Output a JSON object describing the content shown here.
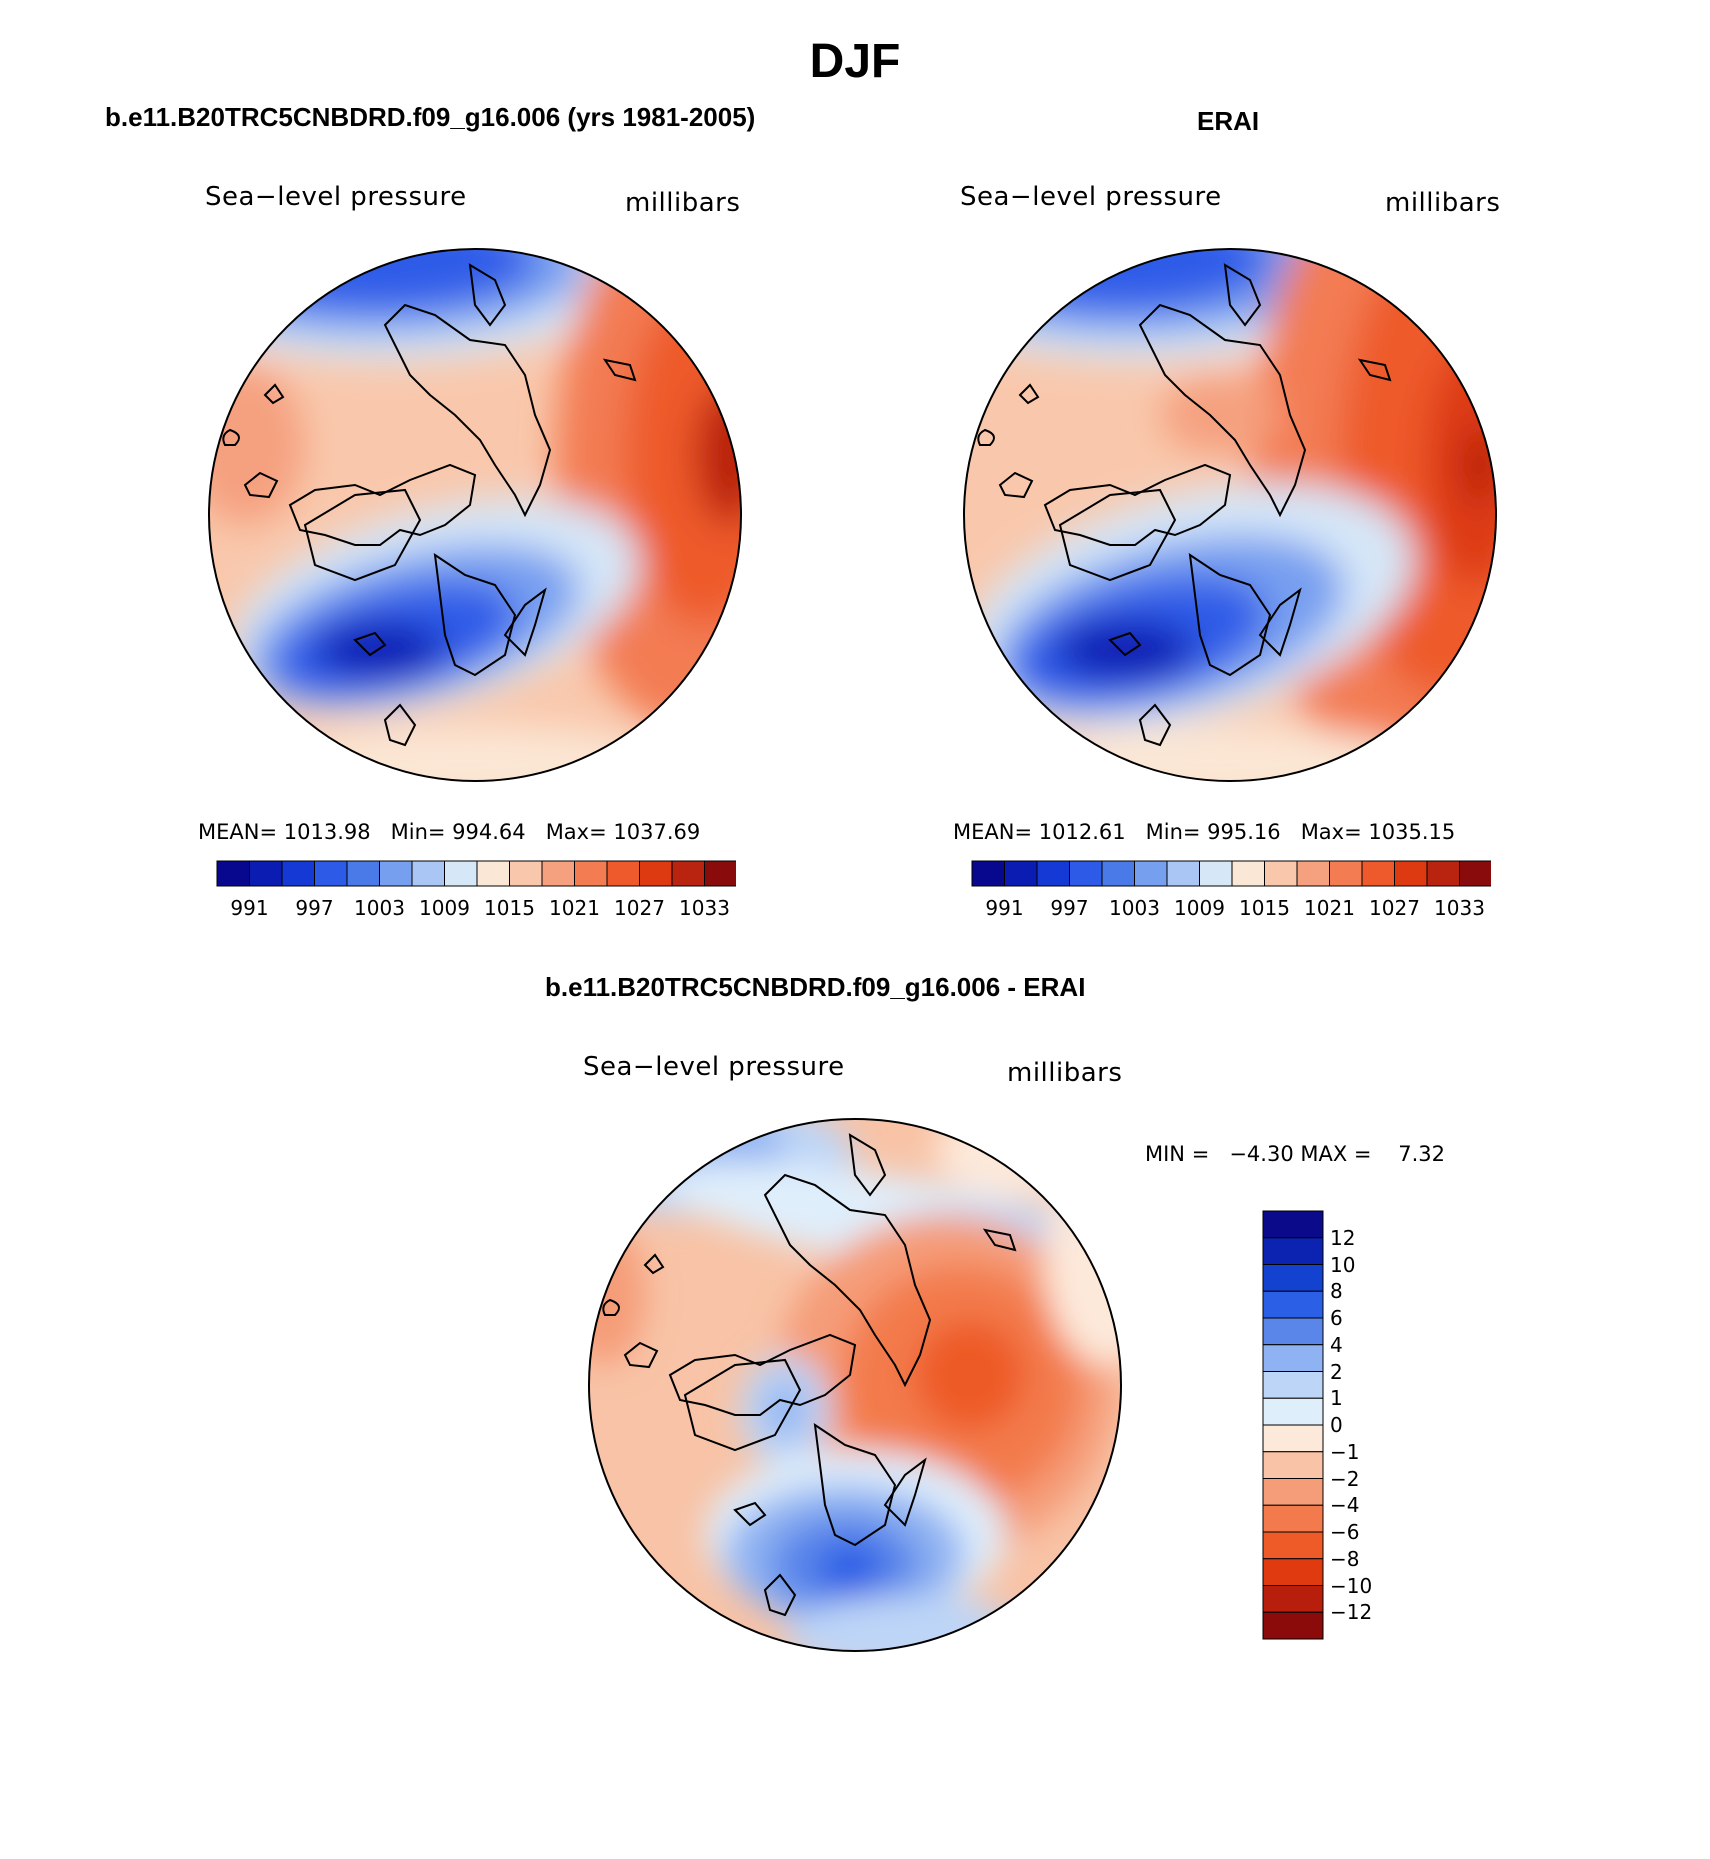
{
  "page": {
    "title": "DJF"
  },
  "panels": [
    {
      "title": "b.e11.B20TRC5CNBDRD.f09_g16.006 (yrs 1981-2005)",
      "left_label": "Sea−level pressure",
      "right_label": "millibars",
      "stats": {
        "mean_label": "MEAN=",
        "mean": "1013.98",
        "min_label": "Min=",
        "min": "994.64",
        "max_label": "Max=",
        "max": "1037.69"
      }
    },
    {
      "title": "ERAI",
      "left_label": "Sea−level pressure",
      "right_label": "millibars",
      "stats": {
        "mean_label": "MEAN=",
        "mean": "1012.61",
        "min_label": "Min=",
        "min": "995.16",
        "max_label": "Max=",
        "max": "1035.15"
      }
    },
    {
      "title": "b.e11.B20TRC5CNBDRD.f09_g16.006 - ERAI",
      "left_label": "Sea−level pressure",
      "right_label": "millibars",
      "stats": {
        "min_label": "MIN =",
        "min": "−4.30",
        "max_label": "MAX =",
        "max": "7.32"
      }
    }
  ],
  "abs_colorbar": {
    "colors": [
      "#08088f",
      "#0b1cb3",
      "#1539d4",
      "#2d5be8",
      "#4a7ae8",
      "#779ff0",
      "#a9c6f5",
      "#d6e7f8",
      "#fbe7d5",
      "#f9c8ac",
      "#f5a07f",
      "#f37c52",
      "#ee5a2c",
      "#dd3a12",
      "#b92410",
      "#8a0b0b"
    ],
    "labels": [
      "991",
      "997",
      "1003",
      "1009",
      "1015",
      "1021",
      "1027",
      "1033"
    ]
  },
  "diff_colorbar": {
    "colors": [
      "#0a0a8a",
      "#0c22b0",
      "#1442d0",
      "#2a5fe6",
      "#5a86ea",
      "#8fb2f2",
      "#bdd5f7",
      "#dfeefb",
      "#fde9da",
      "#f8c3a6",
      "#f59c78",
      "#f37a4c",
      "#ee5a28",
      "#e03a10",
      "#b71f0c",
      "#8b0a0a"
    ],
    "labels": [
      "12",
      "10",
      "8",
      "6",
      "4",
      "2",
      "1",
      "0",
      "−1",
      "−2",
      "−4",
      "−6",
      "−8",
      "−10",
      "−12"
    ]
  }
}
